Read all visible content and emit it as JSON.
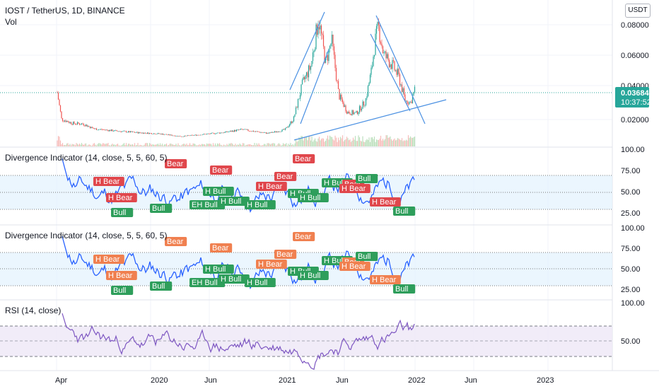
{
  "header": {
    "symbol_title": "IOST / TetherUS, 1D, BINANCE",
    "vol_label": "Vol",
    "currency_button": "USDT"
  },
  "price_tag": {
    "price": "0.03684",
    "countdown": "10:37:52",
    "color": "#26a69a"
  },
  "panes": {
    "div1_title": "Divergence Indicator (14, close, 5, 5, 60, 5)",
    "div2_title": "Divergence Indicator (14, close, 5, 5, 60, 5)",
    "rsi_title": "RSI (14, close)"
  },
  "colors": {
    "up": "#26a69a",
    "down": "#ef5350",
    "rsi_line": "#7e57c2",
    "div_line": "#2962ff",
    "bear_label_1": "#e0474c",
    "bull_label": "#2e9e5b",
    "bear_label_2": "#f08050",
    "trendline": "#4a90e2"
  },
  "x_axis": {
    "labels": [
      "Apr",
      "2020",
      "Jun",
      "2021",
      "Jun",
      "2022",
      "Jun",
      "2023"
    ]
  },
  "chart_data": [
    {
      "type": "candlestick",
      "title": "IOST / TetherUS, 1D, BINANCE",
      "x_range": [
        "2019-04",
        "2023-07"
      ],
      "y_ticks": [
        "0.08000",
        "0.06000",
        "0.04000",
        "0.02000"
      ],
      "ylim": [
        0,
        0.09
      ],
      "last_price": 0.03684,
      "series": [
        {
          "name": "IOST / TetherUS",
          "points": [
            {
              "x": "2019-04-01",
              "y": 0.038
            },
            {
              "x": "2019-04-15",
              "y": 0.016
            },
            {
              "x": "2019-05-15",
              "y": 0.013
            },
            {
              "x": "2019-06-15",
              "y": 0.0125
            },
            {
              "x": "2019-07-15",
              "y": 0.009
            },
            {
              "x": "2019-09-15",
              "y": 0.0075
            },
            {
              "x": "2019-11-15",
              "y": 0.0063
            },
            {
              "x": "2020-01-15",
              "y": 0.0055
            },
            {
              "x": "2020-03-15",
              "y": 0.0036
            },
            {
              "x": "2020-05-15",
              "y": 0.005
            },
            {
              "x": "2020-07-15",
              "y": 0.0065
            },
            {
              "x": "2020-09-01",
              "y": 0.0085
            },
            {
              "x": "2020-11-15",
              "y": 0.0058
            },
            {
              "x": "2021-01-01",
              "y": 0.0084
            },
            {
              "x": "2021-01-25",
              "y": 0.016
            },
            {
              "x": "2021-02-20",
              "y": 0.042
            },
            {
              "x": "2021-03-15",
              "y": 0.054
            },
            {
              "x": "2021-04-05",
              "y": 0.088
            },
            {
              "x": "2021-04-25",
              "y": 0.056
            },
            {
              "x": "2021-05-12",
              "y": 0.072
            },
            {
              "x": "2021-06-01",
              "y": 0.033
            },
            {
              "x": "2021-06-25",
              "y": 0.021
            },
            {
              "x": "2021-07-20",
              "y": 0.02
            },
            {
              "x": "2021-08-15",
              "y": 0.029
            },
            {
              "x": "2021-09-01",
              "y": 0.051
            },
            {
              "x": "2021-09-10",
              "y": 0.07
            },
            {
              "x": "2021-09-20",
              "y": 0.082
            },
            {
              "x": "2021-10-05",
              "y": 0.062
            },
            {
              "x": "2021-10-25",
              "y": 0.056
            },
            {
              "x": "2021-11-15",
              "y": 0.047
            },
            {
              "x": "2021-12-05",
              "y": 0.029
            },
            {
              "x": "2021-12-20",
              "y": 0.028
            },
            {
              "x": "2021-12-31",
              "y": 0.03684
            }
          ]
        }
      ],
      "annotations": [
        "Wedge trendlines",
        "Rising support trendline"
      ]
    },
    {
      "type": "line",
      "title": "Divergence Indicator (14, close, 5, 5, 60, 5)",
      "y_ticks": [
        "100.00",
        "75.00",
        "50.00",
        "25.00"
      ],
      "ylim": [
        20,
        100
      ],
      "band": [
        30,
        70
      ],
      "labels": [
        "Bear",
        "H Bear",
        "H Bear",
        "Bull",
        "Bull",
        "Bear",
        "H Bull",
        "EH Bull",
        "H Bull",
        "H Bull",
        "Bear",
        "H Bear",
        "Bear",
        "H Bull",
        "H Bull",
        "H Bull",
        "Bear",
        "H Bear",
        "H Bear",
        "Bull",
        "Bull"
      ]
    },
    {
      "type": "line",
      "title": "Divergence Indicator (14, close, 5, 5, 60, 5)",
      "y_ticks": [
        "100.00",
        "75.00",
        "50.00",
        "25.00"
      ],
      "ylim": [
        20,
        100
      ],
      "band": [
        30,
        70
      ],
      "labels": [
        "Bear",
        "H Bear",
        "H Bear",
        "Bull",
        "Bull",
        "Bear",
        "H Bull",
        "EH Bull",
        "H Bull",
        "H Bull",
        "Bear",
        "H Bear",
        "Bear",
        "H Bull",
        "H Bull",
        "H Bull",
        "Bear",
        "H Bear",
        "H Bear",
        "Bull",
        "Bull"
      ]
    },
    {
      "type": "line",
      "title": "RSI (14, close)",
      "y_ticks": [
        "100.00",
        "50.00"
      ],
      "ylim": [
        20,
        100
      ],
      "band": [
        30,
        70
      ]
    }
  ]
}
